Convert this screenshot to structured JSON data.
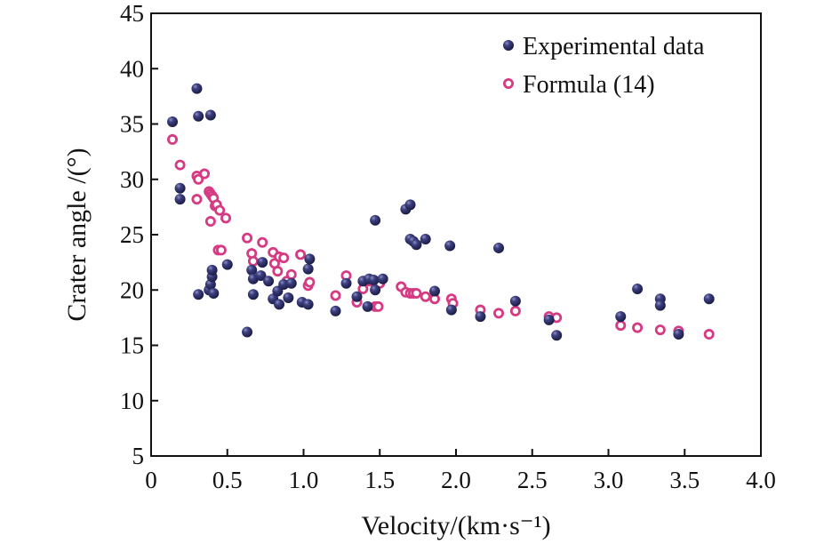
{
  "chart_data": {
    "type": "scatter",
    "title": "",
    "xlabel": "Velocity/(km·s⁻¹)",
    "ylabel": "Crater angle /(°)",
    "xlim": [
      0,
      4.0
    ],
    "ylim": [
      5,
      45
    ],
    "x_ticks": [
      "0",
      "0.5",
      "1.0",
      "1.5",
      "2.0",
      "2.5",
      "3.0",
      "3.5",
      "4.0"
    ],
    "y_ticks": [
      "5",
      "10",
      "15",
      "20",
      "25",
      "30",
      "35",
      "40",
      "45"
    ],
    "grid": false,
    "legend_position": "top-right",
    "series": [
      {
        "name": "Experimental data",
        "marker": "filled-circle",
        "color": "#2b2d5e",
        "points": [
          [
            0.14,
            35.2
          ],
          [
            0.3,
            38.2
          ],
          [
            0.31,
            35.7
          ],
          [
            0.39,
            35.8
          ],
          [
            0.19,
            29.2
          ],
          [
            0.19,
            28.2
          ],
          [
            0.31,
            19.6
          ],
          [
            0.38,
            20.0
          ],
          [
            0.39,
            20.5
          ],
          [
            0.4,
            21.2
          ],
          [
            0.4,
            21.8
          ],
          [
            0.41,
            19.7
          ],
          [
            0.5,
            22.3
          ],
          [
            0.63,
            16.2
          ],
          [
            0.66,
            21.8
          ],
          [
            0.67,
            19.6
          ],
          [
            0.67,
            21.0
          ],
          [
            0.72,
            21.3
          ],
          [
            0.73,
            22.5
          ],
          [
            0.77,
            20.8
          ],
          [
            0.8,
            19.2
          ],
          [
            0.83,
            19.9
          ],
          [
            0.84,
            18.7
          ],
          [
            0.87,
            20.5
          ],
          [
            0.9,
            19.3
          ],
          [
            0.92,
            20.6
          ],
          [
            0.99,
            18.9
          ],
          [
            1.03,
            18.7
          ],
          [
            1.03,
            21.9
          ],
          [
            1.04,
            22.8
          ],
          [
            1.21,
            18.1
          ],
          [
            1.28,
            20.6
          ],
          [
            1.35,
            19.4
          ],
          [
            1.39,
            20.8
          ],
          [
            1.42,
            18.5
          ],
          [
            1.43,
            21.0
          ],
          [
            1.46,
            20.9
          ],
          [
            1.47,
            20.0
          ],
          [
            1.47,
            26.3
          ],
          [
            1.52,
            21.0
          ],
          [
            1.67,
            27.3
          ],
          [
            1.7,
            27.7
          ],
          [
            1.7,
            24.6
          ],
          [
            1.72,
            24.4
          ],
          [
            1.74,
            24.1
          ],
          [
            1.8,
            24.6
          ],
          [
            1.86,
            19.9
          ],
          [
            1.96,
            24.0
          ],
          [
            1.97,
            18.2
          ],
          [
            2.16,
            17.6
          ],
          [
            2.28,
            23.8
          ],
          [
            2.39,
            19.0
          ],
          [
            2.61,
            17.3
          ],
          [
            2.66,
            15.9
          ],
          [
            3.08,
            17.6
          ],
          [
            3.19,
            20.1
          ],
          [
            3.34,
            19.2
          ],
          [
            3.34,
            18.6
          ],
          [
            3.46,
            16.0
          ],
          [
            3.66,
            19.2
          ]
        ]
      },
      {
        "name": "Formula (14)",
        "marker": "ring",
        "color": "#d63a83",
        "points": [
          [
            0.14,
            33.6
          ],
          [
            0.19,
            31.3
          ],
          [
            0.3,
            30.3
          ],
          [
            0.31,
            30.0
          ],
          [
            0.3,
            28.2
          ],
          [
            0.35,
            30.5
          ],
          [
            0.38,
            28.9
          ],
          [
            0.39,
            28.7
          ],
          [
            0.4,
            28.5
          ],
          [
            0.41,
            28.3
          ],
          [
            0.42,
            27.6
          ],
          [
            0.43,
            27.7
          ],
          [
            0.45,
            27.2
          ],
          [
            0.39,
            26.2
          ],
          [
            0.49,
            26.5
          ],
          [
            0.44,
            23.6
          ],
          [
            0.46,
            23.6
          ],
          [
            0.63,
            24.7
          ],
          [
            0.66,
            23.3
          ],
          [
            0.67,
            22.6
          ],
          [
            0.73,
            24.3
          ],
          [
            0.8,
            23.4
          ],
          [
            0.81,
            22.4
          ],
          [
            0.83,
            21.7
          ],
          [
            0.84,
            23.0
          ],
          [
            0.87,
            22.9
          ],
          [
            0.89,
            20.8
          ],
          [
            0.92,
            21.4
          ],
          [
            0.98,
            23.2
          ],
          [
            1.03,
            20.4
          ],
          [
            1.04,
            20.7
          ],
          [
            1.21,
            19.5
          ],
          [
            1.28,
            21.3
          ],
          [
            1.35,
            18.9
          ],
          [
            1.39,
            20.1
          ],
          [
            1.43,
            20.8
          ],
          [
            1.46,
            20.7
          ],
          [
            1.47,
            18.5
          ],
          [
            1.49,
            18.5
          ],
          [
            1.5,
            20.6
          ],
          [
            1.64,
            20.3
          ],
          [
            1.67,
            19.8
          ],
          [
            1.7,
            19.7
          ],
          [
            1.72,
            19.7
          ],
          [
            1.74,
            19.7
          ],
          [
            1.8,
            19.4
          ],
          [
            1.86,
            19.2
          ],
          [
            1.97,
            19.2
          ],
          [
            1.98,
            18.8
          ],
          [
            2.16,
            18.2
          ],
          [
            2.28,
            17.9
          ],
          [
            2.39,
            18.1
          ],
          [
            2.61,
            17.6
          ],
          [
            2.66,
            17.5
          ],
          [
            3.08,
            16.8
          ],
          [
            3.19,
            16.6
          ],
          [
            3.34,
            16.4
          ],
          [
            3.46,
            16.3
          ],
          [
            3.66,
            16.0
          ]
        ]
      }
    ]
  }
}
